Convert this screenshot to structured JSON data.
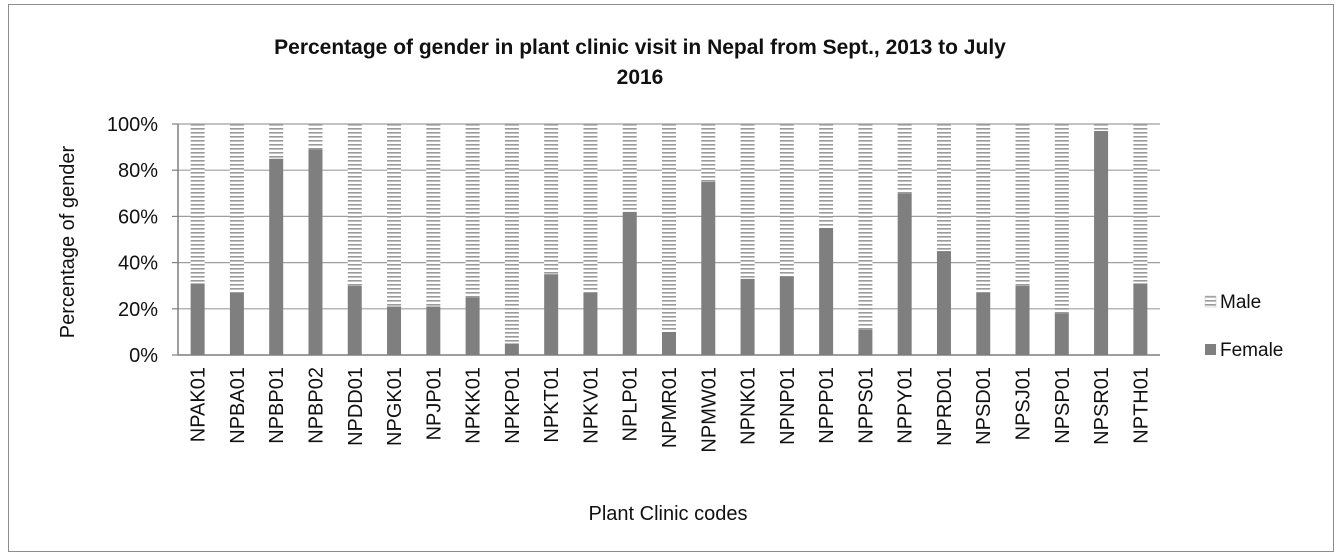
{
  "chart_data": {
    "type": "bar",
    "stacked": true,
    "percent": true,
    "title_line1": "Percentage of gender in plant clinic visit in Nepal from Sept., 2013 to July",
    "title_line2": "2016",
    "xlabel": "Plant Clinic codes",
    "ylabel": "Percentage of gender",
    "ylim": [
      0,
      100
    ],
    "yticks": [
      "0%",
      "20%",
      "40%",
      "60%",
      "80%",
      "100%"
    ],
    "grid": "horizontal",
    "legend_position": "right",
    "categories": [
      "NPAK01",
      "NPBA01",
      "NPBP01",
      "NPBP02",
      "NPDD01",
      "NPGK01",
      "NPJP01",
      "NPKK01",
      "NPKP01",
      "NPKT01",
      "NPKV01",
      "NPLP01",
      "NPMR01",
      "NPMW01",
      "NPNK01",
      "NPNP01",
      "NPPP01",
      "NPPS01",
      "NPPY01",
      "NPRD01",
      "NPSD01",
      "NPSJ01",
      "NPSP01",
      "NPSR01",
      "NPTH01"
    ],
    "series": [
      {
        "name": "Female",
        "values": [
          31,
          27,
          85,
          89,
          30,
          21,
          21,
          25,
          5,
          35,
          27,
          62,
          10,
          75,
          33,
          34,
          55,
          11,
          70,
          45,
          27,
          30,
          18,
          97,
          31
        ]
      },
      {
        "name": "Male",
        "values": [
          69,
          73,
          15,
          11,
          70,
          79,
          79,
          75,
          95,
          65,
          73,
          38,
          90,
          25,
          67,
          66,
          45,
          89,
          30,
          55,
          73,
          70,
          82,
          3,
          69
        ]
      }
    ],
    "colors": {
      "female": "#7f7f7f",
      "male_stripe": "#9a9a9a",
      "grid": "#9f9f9f"
    }
  }
}
